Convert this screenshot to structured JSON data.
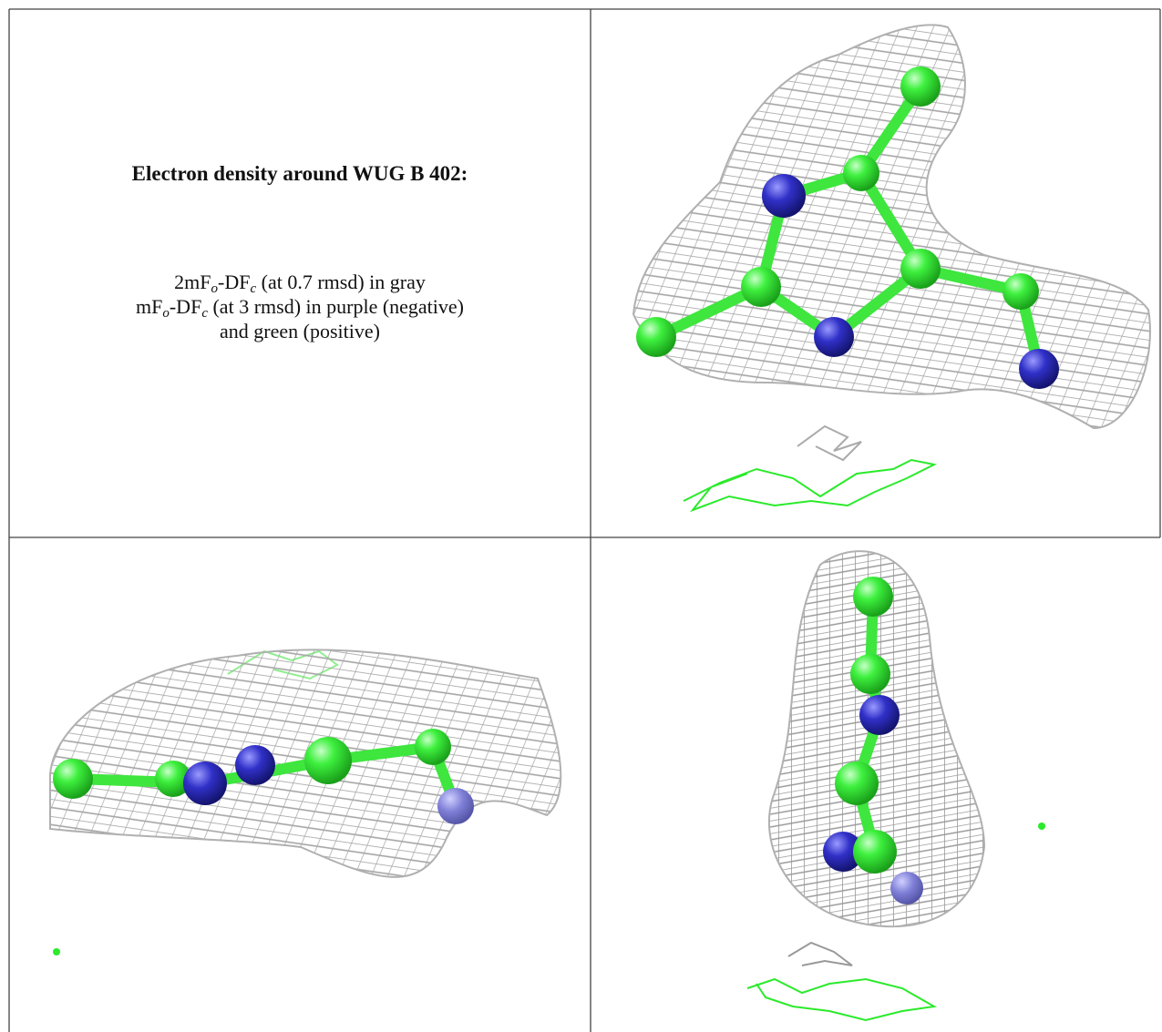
{
  "caption": {
    "title": "Electron density around WUG B 402:",
    "lines": [
      [
        "2mF",
        "o",
        "-DF",
        "c",
        " (at 0.7 rmsd) in gray"
      ],
      [
        "mF",
        "o",
        "-DF",
        "c",
        " (at 3 rmsd) in purple (negative)"
      ],
      [
        "and green (positive)"
      ]
    ]
  }
}
